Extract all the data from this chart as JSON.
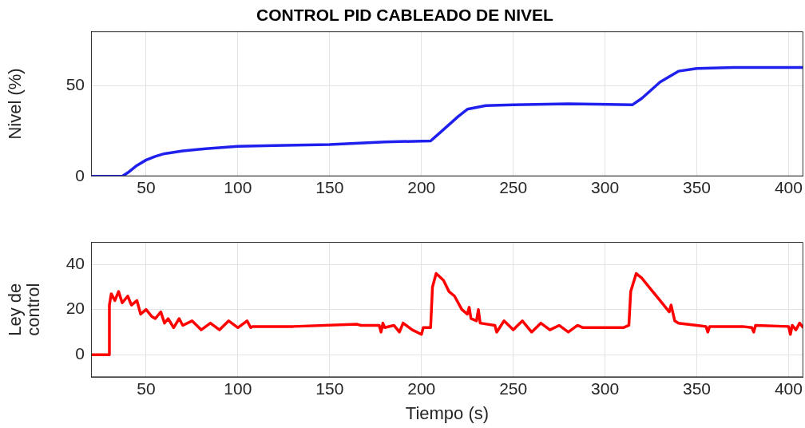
{
  "chart_data": [
    {
      "type": "line",
      "title": "CONTROL PID CABLEADO DE NIVEL",
      "ylabel": "Nivel (%)",
      "xlim": [
        20,
        408
      ],
      "xticks": [
        50,
        100,
        150,
        200,
        250,
        300,
        350,
        400
      ],
      "ylim": [
        0,
        80
      ],
      "yticks": [
        0,
        50
      ],
      "grid": true,
      "series": [
        {
          "color": "#2020ee",
          "x": [
            20,
            37,
            40,
            45,
            50,
            55,
            60,
            70,
            80,
            100,
            120,
            150,
            180,
            205,
            210,
            220,
            225,
            235,
            250,
            280,
            315,
            320,
            330,
            340,
            350,
            370,
            408
          ],
          "values": [
            0,
            0,
            2,
            6,
            9,
            11,
            12.5,
            14,
            15,
            16.5,
            17,
            17.5,
            19,
            19.5,
            24,
            33,
            37,
            39,
            39.5,
            40,
            39.5,
            43,
            52,
            58,
            59.5,
            60,
            60
          ]
        }
      ]
    },
    {
      "type": "line",
      "xlabel": "Tiempo (s)",
      "ylabel": "Ley de control",
      "xlim": [
        20,
        408
      ],
      "xticks": [
        50,
        100,
        150,
        200,
        250,
        300,
        350,
        400
      ],
      "ylim": [
        -10,
        50
      ],
      "yticks": [
        0,
        20,
        40
      ],
      "grid": true,
      "series": [
        {
          "color": "#ff0000",
          "x": [
            20,
            29.9,
            30,
            31,
            33,
            35,
            37,
            40,
            42,
            45,
            47,
            50,
            53,
            55,
            58,
            60,
            62,
            65,
            68,
            70,
            75,
            80,
            85,
            90,
            95,
            100,
            105,
            107,
            108,
            130,
            165,
            167,
            177,
            178,
            179,
            180,
            185,
            188,
            190,
            195,
            200,
            201,
            205,
            206,
            208,
            212,
            215,
            218,
            222,
            225,
            226,
            227,
            230,
            231,
            232,
            240,
            241,
            245,
            250,
            255,
            260,
            265,
            270,
            275,
            280,
            285,
            288,
            310,
            313,
            314,
            317,
            320,
            325,
            330,
            335,
            336,
            338,
            340,
            350,
            355,
            356,
            357,
            375,
            380,
            381,
            382,
            400,
            401,
            402,
            404,
            406,
            408
          ],
          "values": [
            0,
            0,
            22,
            27,
            24,
            28,
            23,
            26,
            22,
            24,
            18,
            20,
            17,
            16,
            19,
            14,
            16,
            12,
            16,
            13,
            15,
            11,
            14,
            11,
            15,
            12,
            15,
            12,
            12.5,
            12.5,
            13.5,
            13,
            13,
            10,
            14,
            12,
            13,
            10,
            14,
            11,
            9,
            12,
            12,
            30,
            36,
            33,
            28,
            26,
            20,
            18,
            21,
            16,
            15,
            20,
            14,
            13,
            10,
            15,
            11,
            15,
            10,
            14,
            11,
            13,
            10,
            13,
            12,
            12,
            13,
            28,
            36,
            34,
            29,
            24,
            19,
            22,
            15,
            14,
            13,
            12.5,
            10,
            12.5,
            12.5,
            12,
            10,
            13,
            12.5,
            9,
            13,
            11,
            14,
            12
          ]
        }
      ]
    }
  ]
}
